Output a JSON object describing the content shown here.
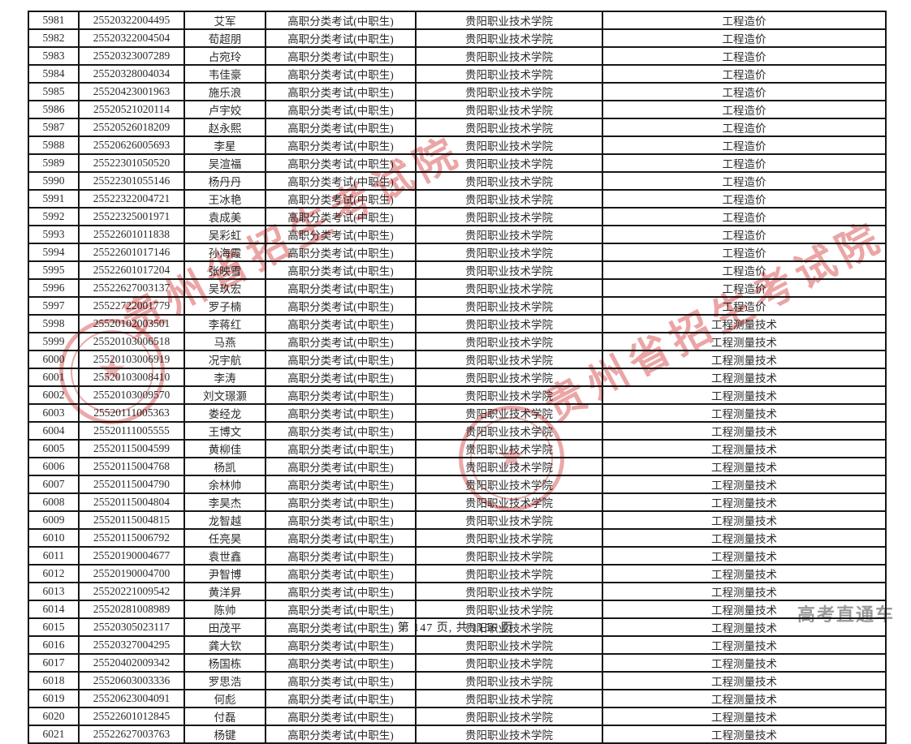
{
  "table": {
    "columns": [
      "serial",
      "exam_no",
      "name",
      "exam_type",
      "school",
      "major"
    ],
    "rows": [
      [
        "5981",
        "25520322004495",
        "艾军",
        "高职分类考试(中职生)",
        "贵阳职业技术学院",
        "工程造价"
      ],
      [
        "5982",
        "25520322004504",
        "荀超朋",
        "高职分类考试(中职生)",
        "贵阳职业技术学院",
        "工程造价"
      ],
      [
        "5983",
        "25520323007289",
        "占宛玲",
        "高职分类考试(中职生)",
        "贵阳职业技术学院",
        "工程造价"
      ],
      [
        "5984",
        "25520328004034",
        "韦佳豪",
        "高职分类考试(中职生)",
        "贵阳职业技术学院",
        "工程造价"
      ],
      [
        "5985",
        "25520423001963",
        "施乐浪",
        "高职分类考试(中职生)",
        "贵阳职业技术学院",
        "工程造价"
      ],
      [
        "5986",
        "25520521020114",
        "卢宇姣",
        "高职分类考试(中职生)",
        "贵阳职业技术学院",
        "工程造价"
      ],
      [
        "5987",
        "25520526018209",
        "赵永熙",
        "高职分类考试(中职生)",
        "贵阳职业技术学院",
        "工程造价"
      ],
      [
        "5988",
        "25520626005693",
        "李星",
        "高职分类考试(中职生)",
        "贵阳职业技术学院",
        "工程造价"
      ],
      [
        "5989",
        "25522301050520",
        "吴渲福",
        "高职分类考试(中职生)",
        "贵阳职业技术学院",
        "工程造价"
      ],
      [
        "5990",
        "25522301055146",
        "杨丹丹",
        "高职分类考试(中职生)",
        "贵阳职业技术学院",
        "工程造价"
      ],
      [
        "5991",
        "25522322004721",
        "王冰艳",
        "高职分类考试(中职生)",
        "贵阳职业技术学院",
        "工程造价"
      ],
      [
        "5992",
        "25522325001971",
        "袁成美",
        "高职分类考试(中职生)",
        "贵阳职业技术学院",
        "工程造价"
      ],
      [
        "5993",
        "25522601011838",
        "吴彩虹",
        "高职分类考试(中职生)",
        "贵阳职业技术学院",
        "工程造价"
      ],
      [
        "5994",
        "25522601017146",
        "孙海霞",
        "高职分类考试(中职生)",
        "贵阳职业技术学院",
        "工程造价"
      ],
      [
        "5995",
        "25522601017204",
        "张映雪",
        "高职分类考试(中职生)",
        "贵阳职业技术学院",
        "工程造价"
      ],
      [
        "5996",
        "25522627003137",
        "吴玖宏",
        "高职分类考试(中职生)",
        "贵阳职业技术学院",
        "工程造价"
      ],
      [
        "5997",
        "25522722001779",
        "罗子楠",
        "高职分类考试(中职生)",
        "贵阳职业技术学院",
        "工程造价"
      ],
      [
        "5998",
        "25520102003501",
        "李蒋红",
        "高职分类考试(中职生)",
        "贵阳职业技术学院",
        "工程测量技术"
      ],
      [
        "5999",
        "25520103006518",
        "马燕",
        "高职分类考试(中职生)",
        "贵阳职业技术学院",
        "工程测量技术"
      ],
      [
        "6000",
        "25520103006919",
        "况宇航",
        "高职分类考试(中职生)",
        "贵阳职业技术学院",
        "工程测量技术"
      ],
      [
        "6001",
        "25520103008410",
        "李涛",
        "高职分类考试(中职生)",
        "贵阳职业技术学院",
        "工程测量技术"
      ],
      [
        "6002",
        "25520103009570",
        "刘文璟灏",
        "高职分类考试(中职生)",
        "贵阳职业技术学院",
        "工程测量技术"
      ],
      [
        "6003",
        "25520111005363",
        "娄经龙",
        "高职分类考试(中职生)",
        "贵阳职业技术学院",
        "工程测量技术"
      ],
      [
        "6004",
        "25520111005555",
        "王博文",
        "高职分类考试(中职生)",
        "贵阳职业技术学院",
        "工程测量技术"
      ],
      [
        "6005",
        "25520115004599",
        "黄柳佳",
        "高职分类考试(中职生)",
        "贵阳职业技术学院",
        "工程测量技术"
      ],
      [
        "6006",
        "25520115004768",
        "杨凯",
        "高职分类考试(中职生)",
        "贵阳职业技术学院",
        "工程测量技术"
      ],
      [
        "6007",
        "25520115004790",
        "余林帅",
        "高职分类考试(中职生)",
        "贵阳职业技术学院",
        "工程测量技术"
      ],
      [
        "6008",
        "25520115004804",
        "李昊杰",
        "高职分类考试(中职生)",
        "贵阳职业技术学院",
        "工程测量技术"
      ],
      [
        "6009",
        "25520115004815",
        "龙智越",
        "高职分类考试(中职生)",
        "贵阳职业技术学院",
        "工程测量技术"
      ],
      [
        "6010",
        "25520115006792",
        "任亮昊",
        "高职分类考试(中职生)",
        "贵阳职业技术学院",
        "工程测量技术"
      ],
      [
        "6011",
        "25520190004677",
        "袁世鑫",
        "高职分类考试(中职生)",
        "贵阳职业技术学院",
        "工程测量技术"
      ],
      [
        "6012",
        "25520190004700",
        "尹智博",
        "高职分类考试(中职生)",
        "贵阳职业技术学院",
        "工程测量技术"
      ],
      [
        "6013",
        "25520221009542",
        "黄洋昇",
        "高职分类考试(中职生)",
        "贵阳职业技术学院",
        "工程测量技术"
      ],
      [
        "6014",
        "25520281008989",
        "陈帅",
        "高职分类考试(中职生)",
        "贵阳职业技术学院",
        "工程测量技术"
      ],
      [
        "6015",
        "25520305023117",
        "田茂平",
        "高职分类考试(中职生)",
        "贵阳职业技术学院",
        "工程测量技术"
      ],
      [
        "6016",
        "25520327004295",
        "龚大钦",
        "高职分类考试(中职生)",
        "贵阳职业技术学院",
        "工程测量技术"
      ],
      [
        "6017",
        "25520402009342",
        "杨国栋",
        "高职分类考试(中职生)",
        "贵阳职业技术学院",
        "工程测量技术"
      ],
      [
        "6018",
        "25520603003336",
        "罗思浩",
        "高职分类考试(中职生)",
        "贵阳职业技术学院",
        "工程测量技术"
      ],
      [
        "6019",
        "25520623004091",
        "何彪",
        "高职分类考试(中职生)",
        "贵阳职业技术学院",
        "工程测量技术"
      ],
      [
        "6020",
        "25522601012845",
        "付磊",
        "高职分类考试(中职生)",
        "贵阳职业技术学院",
        "工程测量技术"
      ],
      [
        "6021",
        "25522627003763",
        "杨键",
        "高职分类考试(中职生)",
        "贵阳职业技术学院",
        "工程测量技术"
      ]
    ]
  },
  "footer": {
    "page_text": "第 147 页, 共 1156 页"
  },
  "watermarks": {
    "red_text": "贵州省招生考试院",
    "red_color": "#d85252",
    "seal_star": "★",
    "gray_text": "高考直通车",
    "gray_color": "#9a9a9a"
  }
}
